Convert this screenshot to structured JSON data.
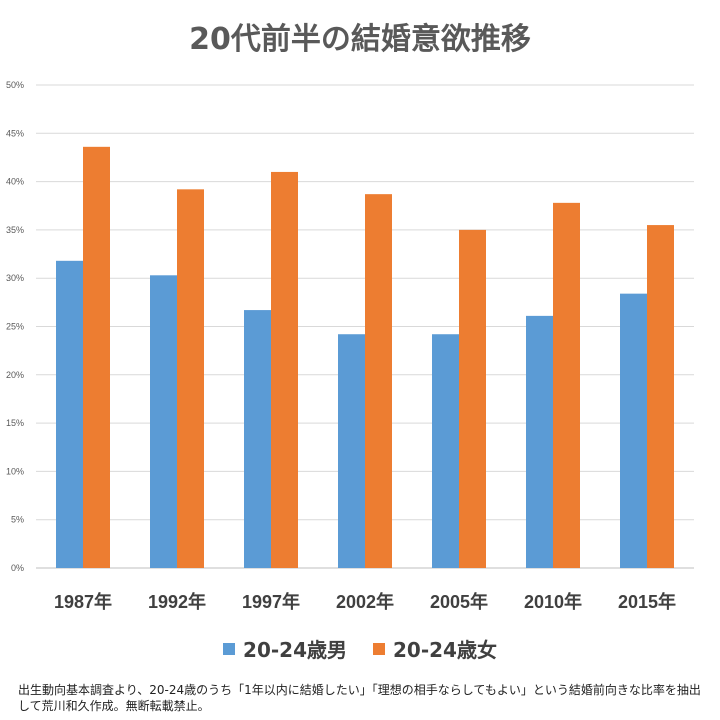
{
  "title": "20代前半の結婚意欲推移",
  "colors": {
    "male": "#5B9BD5",
    "female": "#ED7D31",
    "grid": "#D9D9D9"
  },
  "chart_data": {
    "type": "bar",
    "title": "20代前半の結婚意欲推移",
    "categories": [
      "1987年",
      "1992年",
      "1997年",
      "2002年",
      "2005年",
      "2010年",
      "2015年"
    ],
    "series": [
      {
        "name": "20-24歳男",
        "values": [
          31.8,
          30.3,
          26.7,
          24.2,
          24.2,
          26.1,
          28.4
        ]
      },
      {
        "name": "20-24歳女",
        "values": [
          43.6,
          39.2,
          41.0,
          38.7,
          35.0,
          37.8,
          35.5
        ]
      }
    ],
    "ylim": [
      0,
      50
    ],
    "yticks": [
      "0%",
      "5%",
      "10%",
      "15%",
      "20%",
      "25%",
      "30%",
      "35%",
      "40%",
      "45%",
      "50%"
    ],
    "grid": true,
    "legend": "bottom"
  },
  "footnote": "出生動向基本調査より、20-24歳のうち「1年以内に結婚したい」「理想の相手ならしてもよい」という結婚前向きな比率を抽出して荒川和久作成。無断転載禁止。"
}
